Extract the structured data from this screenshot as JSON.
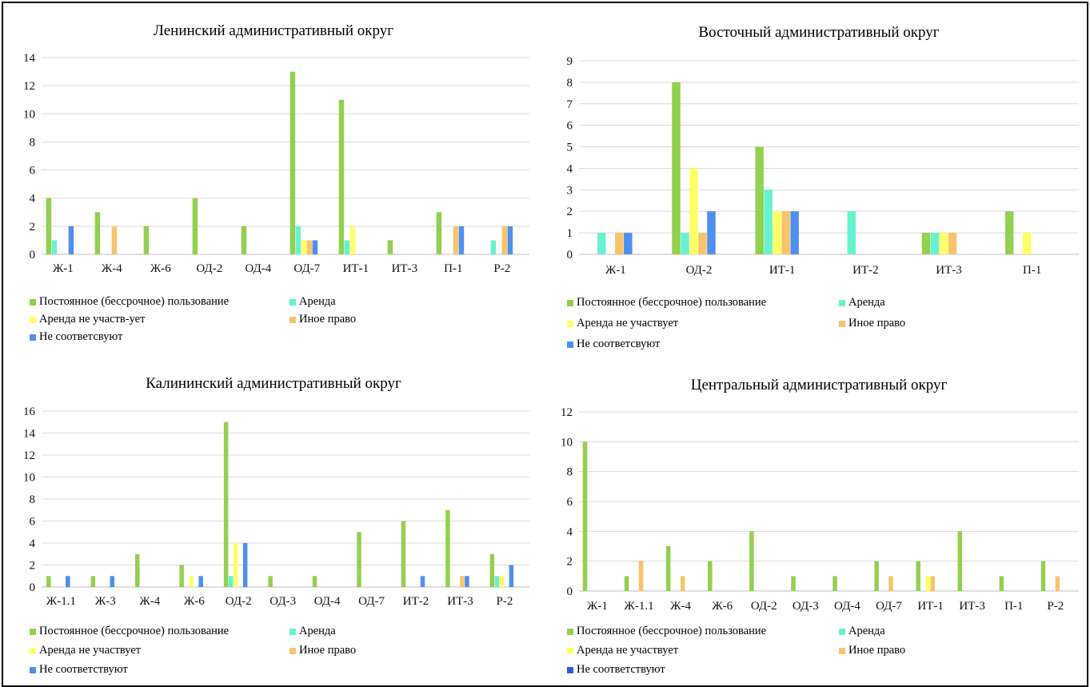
{
  "colors": {
    "constant": "#92D050",
    "rent": "#66F2D0",
    "rent_no": "#FFFF66",
    "other": "#F8C46A",
    "nonmatch": "#4F8FEF",
    "nonmatch_dark": "#2E5FD8",
    "grid": "#d9d9d9"
  },
  "chart_data": [
    {
      "id": "p1",
      "type": "bar",
      "title": "Ленинский административный округ",
      "categories": [
        "Ж-1",
        "Ж-4",
        "Ж-6",
        "ОД-2",
        "ОД-4",
        "ОД-7",
        "ИТ-1",
        "ИТ-3",
        "П-1",
        "Р-2"
      ],
      "ylim": [
        0,
        14
      ],
      "yticks": [
        0,
        2,
        4,
        6,
        8,
        10,
        12,
        14
      ],
      "series": [
        {
          "name": "Постоянное (бессрочное) пользование",
          "color_key": "constant",
          "values": [
            4,
            3,
            2,
            4,
            2,
            13,
            11,
            1,
            3,
            0
          ]
        },
        {
          "name": "Аренда",
          "color_key": "rent",
          "values": [
            1,
            0,
            0,
            0,
            0,
            2,
            1,
            0,
            0,
            1
          ]
        },
        {
          "name": "Аренда не участв-ует",
          "color_key": "rent_no",
          "values": [
            0,
            0,
            0,
            0,
            0,
            1,
            2,
            0,
            0,
            0
          ]
        },
        {
          "name": "Иное право",
          "color_key": "other",
          "values": [
            0,
            2,
            0,
            0,
            0,
            1,
            0,
            0,
            2,
            2
          ]
        },
        {
          "name": "Не соответсвуют",
          "color_key": "nonmatch",
          "values": [
            2,
            0,
            0,
            0,
            0,
            1,
            0,
            0,
            2,
            2
          ]
        }
      ]
    },
    {
      "id": "p2",
      "type": "bar",
      "title": "Восточный административный округ",
      "categories": [
        "Ж-1",
        "ОД-2",
        "ИТ-1",
        "ИТ-2",
        "ИТ-3",
        "П-1"
      ],
      "ylim": [
        0,
        9
      ],
      "yticks": [
        0,
        1,
        2,
        3,
        4,
        5,
        6,
        7,
        8,
        9
      ],
      "series": [
        {
          "name": "Постоянное (бессрочное) пользование",
          "color_key": "constant",
          "values": [
            0,
            8,
            5,
            0,
            1,
            2
          ]
        },
        {
          "name": "Аренда",
          "color_key": "rent",
          "values": [
            1,
            1,
            3,
            2,
            1,
            0
          ]
        },
        {
          "name": "Аренда не участвует",
          "color_key": "rent_no",
          "values": [
            0,
            4,
            2,
            0,
            1,
            1
          ]
        },
        {
          "name": "Иное право",
          "color_key": "other",
          "values": [
            1,
            1,
            2,
            0,
            1,
            0
          ]
        },
        {
          "name": "Не соответсвуют",
          "color_key": "nonmatch",
          "values": [
            1,
            2,
            2,
            0,
            0,
            0
          ]
        }
      ]
    },
    {
      "id": "p3",
      "type": "bar",
      "title": "Калининский административный округ",
      "categories": [
        "Ж-1.1",
        "Ж-3",
        "Ж-4",
        "Ж-6",
        "ОД-2",
        "ОД-3",
        "ОД-4",
        "ОД-7",
        "ИТ-2",
        "ИТ-3",
        "Р-2"
      ],
      "ylim": [
        0,
        16
      ],
      "yticks": [
        0,
        2,
        4,
        6,
        8,
        10,
        12,
        14,
        16
      ],
      "series": [
        {
          "name": "Постоянное (бессрочное) пользование",
          "color_key": "constant",
          "values": [
            1,
            1,
            3,
            2,
            15,
            1,
            1,
            5,
            6,
            7,
            3
          ]
        },
        {
          "name": "Аренда",
          "color_key": "rent",
          "values": [
            0,
            0,
            0,
            0,
            1,
            0,
            0,
            0,
            0,
            0,
            1
          ]
        },
        {
          "name": "Аренда не участвует",
          "color_key": "rent_no",
          "values": [
            0,
            0,
            0,
            1,
            4,
            0,
            0,
            0,
            0,
            0,
            1
          ]
        },
        {
          "name": "Иное право",
          "color_key": "other",
          "values": [
            0,
            0,
            0,
            0,
            0,
            0,
            0,
            0,
            0,
            1,
            0
          ]
        },
        {
          "name": "Не соответствуют",
          "color_key": "nonmatch",
          "values": [
            1,
            1,
            0,
            1,
            4,
            0,
            0,
            0,
            1,
            1,
            2
          ]
        }
      ]
    },
    {
      "id": "p4",
      "type": "bar",
      "title": "Центральный административный округ",
      "categories": [
        "Ж-1",
        "Ж-1.1",
        "Ж-4",
        "Ж-6",
        "ОД-2",
        "ОД-3",
        "ОД-4",
        "ОД-7",
        "ИТ-1",
        "ИТ-3",
        "П-1",
        "Р-2"
      ],
      "ylim": [
        0,
        12
      ],
      "yticks": [
        0,
        2,
        4,
        6,
        8,
        10,
        12
      ],
      "series": [
        {
          "name": "Постоянное (бессрочное) пользование",
          "color_key": "constant",
          "values": [
            10,
            1,
            3,
            2,
            4,
            1,
            1,
            2,
            2,
            4,
            1,
            2
          ]
        },
        {
          "name": "Аренда",
          "color_key": "rent",
          "values": [
            0,
            0,
            0,
            0,
            0,
            0,
            0,
            0,
            0,
            0,
            0,
            0
          ]
        },
        {
          "name": "Аренда не участвует",
          "color_key": "rent_no",
          "values": [
            0,
            0,
            0,
            0,
            0,
            0,
            0,
            0,
            1,
            0,
            0,
            0
          ]
        },
        {
          "name": "Иное право",
          "color_key": "other",
          "values": [
            0,
            2,
            1,
            0,
            0,
            0,
            0,
            1,
            1,
            0,
            0,
            1
          ]
        },
        {
          "name": "Не соответствуют",
          "color_key": "nonmatch_dark",
          "values": [
            0,
            0,
            0,
            0,
            0,
            0,
            0,
            0,
            0,
            0,
            0,
            0
          ]
        }
      ]
    }
  ]
}
